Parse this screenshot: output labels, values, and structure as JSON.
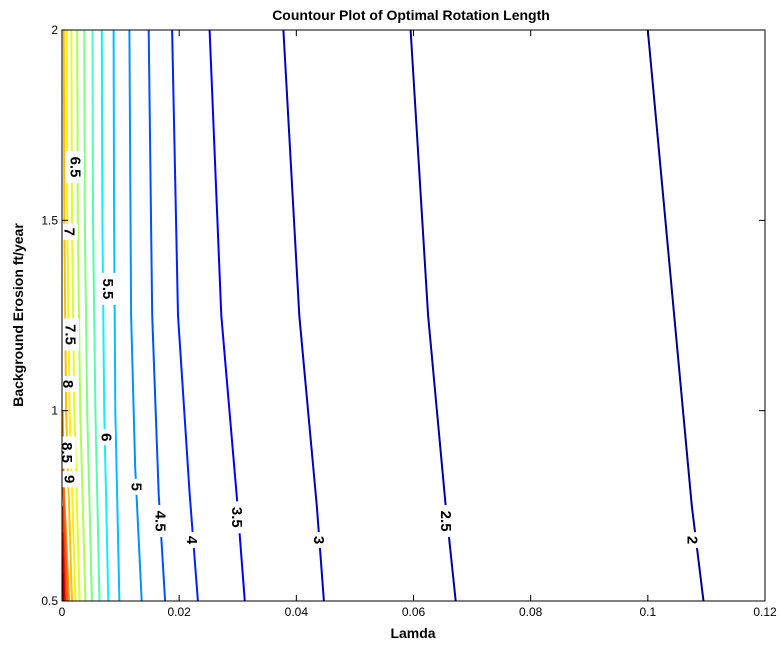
{
  "chart_data": {
    "type": "contour",
    "title": "Countour Plot of Optimal Rotation Length",
    "xlabel": "Lamda",
    "ylabel": "Background Erosion ft/year",
    "xlim": [
      0,
      0.12
    ],
    "ylim": [
      0.5,
      2
    ],
    "xticks": [
      0,
      0.02,
      0.04,
      0.06,
      0.08,
      0.1,
      0.12
    ],
    "xtick_labels": [
      "0",
      "0.02",
      "0.04",
      "0.06",
      "0.08",
      "0.1",
      "0.12"
    ],
    "yticks": [
      0.5,
      1,
      1.5,
      2
    ],
    "ytick_labels": [
      "0.5",
      "1",
      "1.5",
      "2"
    ],
    "grid": false,
    "colormap": "jet",
    "contours": [
      {
        "level": 2,
        "label": "2",
        "color": "#00008f",
        "points": [
          [
            0.1,
            2
          ],
          [
            0.1045,
            1.25
          ],
          [
            0.1075,
            0.75
          ],
          [
            0.1095,
            0.5
          ]
        ],
        "label_at": [
          0.1075,
          0.66
        ]
      },
      {
        "level": 2.5,
        "label": "2.5",
        "color": "#00009f",
        "points": [
          [
            0.0595,
            2
          ],
          [
            0.0625,
            1.25
          ],
          [
            0.0655,
            0.75
          ],
          [
            0.0672,
            0.5
          ]
        ],
        "label_at": [
          0.0655,
          0.71
        ]
      },
      {
        "level": 3,
        "label": "3",
        "color": "#0000bf",
        "points": [
          [
            0.0378,
            2
          ],
          [
            0.0405,
            1.25
          ],
          [
            0.0435,
            0.75
          ],
          [
            0.0447,
            0.5
          ]
        ],
        "label_at": [
          0.0438,
          0.66
        ]
      },
      {
        "level": 3.5,
        "label": "3.5",
        "color": "#0000ef",
        "points": [
          [
            0.0252,
            2
          ],
          [
            0.0272,
            1.25
          ],
          [
            0.0298,
            0.78
          ],
          [
            0.0312,
            0.5
          ]
        ],
        "label_at": [
          0.0298,
          0.72
        ]
      },
      {
        "level": 4,
        "label": "4",
        "color": "#0020ff",
        "points": [
          [
            0.0188,
            2
          ],
          [
            0.0198,
            1.25
          ],
          [
            0.0218,
            0.78
          ],
          [
            0.0232,
            0.5
          ]
        ],
        "label_at": [
          0.0221,
          0.66
        ]
      },
      {
        "level": 4.5,
        "label": "4.5",
        "color": "#0050ff",
        "points": [
          [
            0.0148,
            2
          ],
          [
            0.0154,
            1.25
          ],
          [
            0.0165,
            0.78
          ],
          [
            0.0176,
            0.5
          ]
        ],
        "label_at": [
          0.0167,
          0.71
        ]
      },
      {
        "level": 5,
        "label": "5",
        "color": "#0090ff",
        "points": [
          [
            0.0115,
            2
          ],
          [
            0.0118,
            1.25
          ],
          [
            0.0125,
            0.85
          ],
          [
            0.0136,
            0.5
          ]
        ],
        "label_at": [
          0.0126,
          0.8
        ]
      },
      {
        "level": 5.5,
        "label": "5.5",
        "color": "#00c0ff",
        "points": [
          [
            0.0088,
            2
          ],
          [
            0.0089,
            1.5
          ],
          [
            0.0091,
            1.0
          ],
          [
            0.0098,
            0.5
          ]
        ],
        "label_at": [
          0.0078,
          1.32
        ]
      },
      {
        "level": 6,
        "label": "6",
        "color": "#10efff",
        "points": [
          [
            0.0068,
            2
          ],
          [
            0.0069,
            1.5
          ],
          [
            0.0072,
            1.0
          ],
          [
            0.0079,
            0.5
          ]
        ],
        "label_at": [
          0.0075,
          0.93
        ]
      },
      {
        "level": 6.5,
        "label": "6.5",
        "color": "#50ffaf",
        "points": [
          [
            0.0052,
            2
          ],
          [
            0.0053,
            1.5
          ],
          [
            0.0057,
            1.0
          ],
          [
            0.0064,
            0.5
          ]
        ],
        "label_at": [
          0.0022,
          1.64
        ]
      },
      {
        "level": 7,
        "label": "7",
        "color": "#80ff80",
        "points": [
          [
            0.0038,
            2
          ],
          [
            0.0039,
            1.5
          ],
          [
            0.0043,
            1.0
          ],
          [
            0.0051,
            0.5
          ]
        ],
        "label_at": [
          0.0012,
          1.47
        ]
      },
      {
        "level": 7.5,
        "label": "7.5",
        "color": "#afff50",
        "points": [
          [
            0.0026,
            2
          ],
          [
            0.0027,
            1.5
          ],
          [
            0.0031,
            1.0
          ],
          [
            0.004,
            0.5
          ]
        ],
        "label_at": [
          0.0014,
          1.2
        ]
      },
      {
        "level": 8,
        "label": "8",
        "color": "#dfff20",
        "points": [
          [
            0.0016,
            2
          ],
          [
            0.0017,
            1.5
          ],
          [
            0.0021,
            1.0
          ],
          [
            0.003,
            0.5
          ]
        ],
        "label_at": [
          0.0009,
          1.07
        ]
      },
      {
        "level": 8.5,
        "label": "8.5",
        "color": "#ffef00",
        "points": [
          [
            0.0008,
            2
          ],
          [
            0.0009,
            1.5
          ],
          [
            0.0013,
            1.0
          ],
          [
            0.0023,
            0.5
          ]
        ],
        "label_at": [
          0.0008,
          0.89
        ]
      },
      {
        "level": 9,
        "label": "9",
        "color": "#ffbf00",
        "points": [
          [
            0.0003,
            2
          ],
          [
            0.0004,
            1.5
          ],
          [
            0.0007,
            1.0
          ],
          [
            0.0017,
            0.5
          ]
        ],
        "label_at": [
          0.0012,
          0.82
        ]
      },
      {
        "level": 9.5,
        "label": "",
        "color": "#ff8f00",
        "points": [
          [
            0.0001,
            1.0
          ],
          [
            0.0003,
            0.8
          ],
          [
            0.0012,
            0.5
          ]
        ]
      },
      {
        "level": 10,
        "label": "",
        "color": "#ff5f00",
        "points": [
          [
            0.0001,
            0.85
          ],
          [
            0.0009,
            0.5
          ]
        ]
      },
      {
        "level": 10.5,
        "label": "",
        "color": "#ff2f00",
        "points": [
          [
            0.0001,
            0.75
          ],
          [
            0.0006,
            0.5
          ]
        ]
      },
      {
        "level": 11,
        "label": "",
        "color": "#df0000",
        "points": [
          [
            0.0001,
            0.68
          ],
          [
            0.0004,
            0.5
          ]
        ]
      },
      {
        "level": 11.5,
        "label": "",
        "color": "#af0000",
        "points": [
          [
            0.0001,
            0.62
          ],
          [
            0.0002,
            0.5
          ]
        ]
      },
      {
        "level": 12,
        "label": "",
        "color": "#800000",
        "points": [
          [
            0.0001,
            0.57
          ],
          [
            0.0001,
            0.5
          ]
        ]
      }
    ]
  }
}
